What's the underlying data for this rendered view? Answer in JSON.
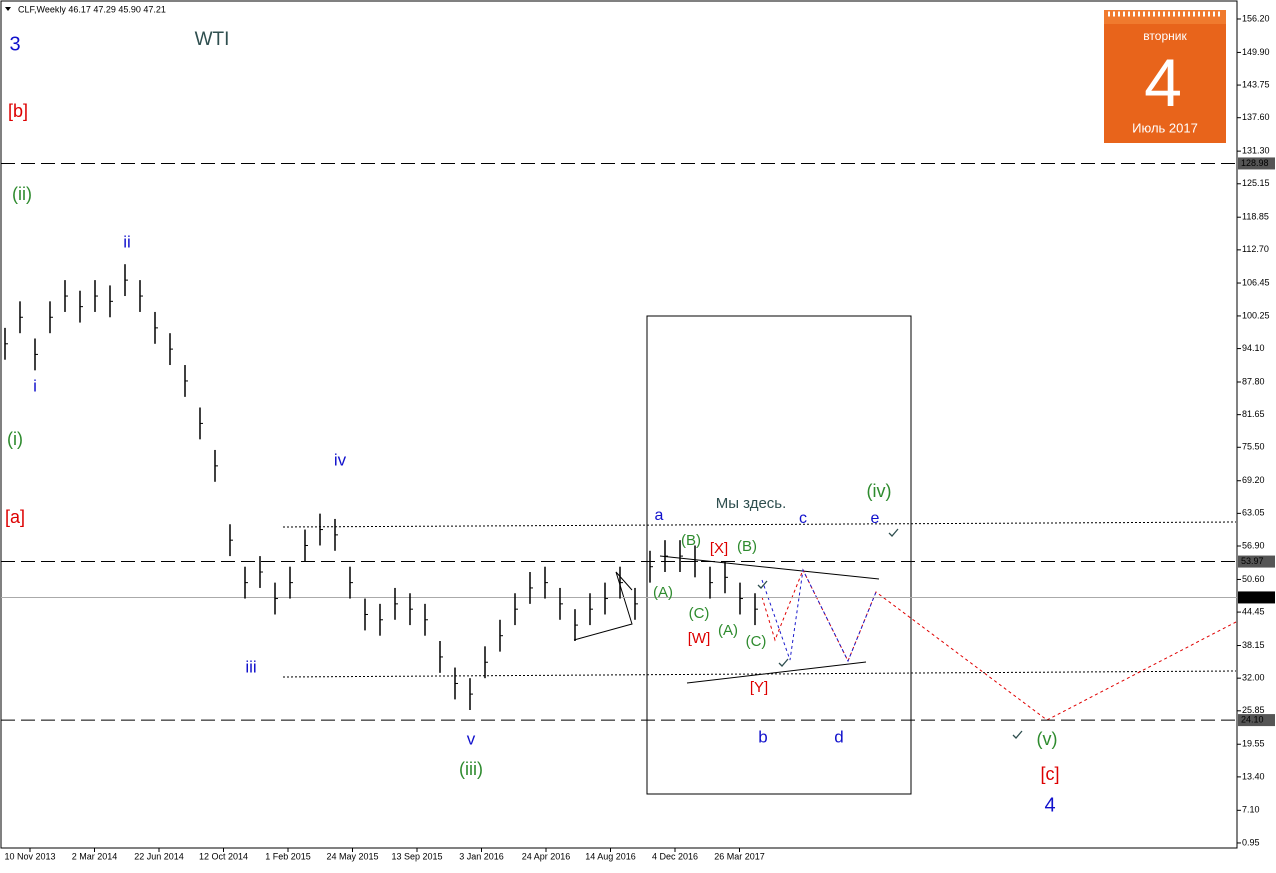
{
  "chart_data": {
    "type": "ohlc",
    "header": "CLF,Weekly  46.17 47.29 45.90 47.21",
    "title": "WTI",
    "ylim": [
      0,
      159.4
    ],
    "yticks": [
      0.95,
      {
        "value": 7.1,
        "label": "7.10"
      },
      {
        "value": 13.4,
        "label": "13.40"
      },
      19.55,
      25.85,
      {
        "value": 32,
        "label": "32.00"
      },
      38.15,
      44.45,
      {
        "value": 50.6,
        "label": "50.60"
      },
      {
        "value": 56.9,
        "label": "56.90"
      },
      63.05,
      {
        "value": 69.2,
        "label": "69.20"
      },
      {
        "value": 75.5,
        "label": "75.50"
      },
      81.65,
      {
        "value": 87.8,
        "label": "87.80"
      },
      {
        "value": 94.1,
        "label": "94.10"
      },
      100.25,
      106.45,
      {
        "value": 112.7,
        "label": "112.70"
      },
      118.85,
      125.15,
      {
        "value": 131.3,
        "label": "131.30"
      },
      {
        "value": 137.6,
        "label": "137.60"
      },
      143.75,
      {
        "value": 149.9,
        "label": "149.90"
      },
      {
        "value": 156.2,
        "label": "156.20"
      }
    ],
    "categories": [
      "10 Nov 2013",
      "2 Mar 2014",
      "22 Jun 2014",
      "12 Oct 2014",
      "1 Feb 2015",
      "24 May 2015",
      "13 Sep 2015",
      "3 Jan 2016",
      "24 Apr 2016",
      "14 Aug 2016",
      "4 Dec 2016",
      "26 Mar 2017"
    ],
    "color": "#000000",
    "high": [
      98,
      103,
      96,
      103,
      107,
      105,
      107,
      106,
      110,
      107,
      101,
      97,
      91,
      83,
      75,
      61,
      53,
      55,
      50,
      53,
      60,
      63,
      62,
      53,
      47,
      46,
      49,
      48,
      46,
      39,
      34,
      32,
      38,
      43,
      48,
      52,
      53,
      49,
      45,
      48,
      50,
      53,
      49,
      56,
      58,
      58,
      57,
      53,
      54,
      50,
      48
    ],
    "low": [
      92,
      97,
      90,
      97,
      101,
      99,
      101,
      100,
      104,
      101,
      95,
      91,
      85,
      77,
      69,
      55,
      47,
      49,
      44,
      47,
      54,
      57,
      56,
      47,
      41,
      40,
      43,
      42,
      40,
      33,
      28,
      26,
      32,
      37,
      42,
      46,
      47,
      43,
      39,
      42,
      44,
      47,
      43,
      50,
      52,
      52,
      51,
      47,
      48,
      44,
      42
    ],
    "levels": [
      128.98,
      53.97,
      47.21,
      {
        "value": 24.1,
        "label": "24.10"
      }
    ],
    "annotations": [
      {
        "text": "3",
        "color": "#1111cc"
      },
      {
        "text": "[b]",
        "color": "#dd0000"
      },
      {
        "text": "(ii)",
        "color": "#2e8b2e"
      },
      {
        "text": "ii",
        "color": "#1111cc"
      },
      {
        "text": "i",
        "color": "#1111cc"
      },
      {
        "text": "(i)",
        "color": "#2e8b2e"
      },
      {
        "text": "iv",
        "color": "#1111cc"
      },
      {
        "text": "[a]",
        "color": "#dd0000"
      },
      {
        "text": "iii",
        "color": "#1111cc"
      },
      {
        "text": "v",
        "color": "#1111cc"
      },
      {
        "text": "(iii)",
        "color": "#2e8b2e"
      },
      {
        "text": "a",
        "color": "#1111cc"
      },
      {
        "text": "Мы здесь.",
        "color": "#2f4f4f"
      },
      {
        "text": "(iv)",
        "color": "#2e8b2e"
      },
      {
        "text": "c",
        "color": "#1111cc"
      },
      {
        "text": "e",
        "color": "#1111cc"
      },
      {
        "text": "(B)",
        "color": "#2e8b2e"
      },
      {
        "text": "[X]",
        "color": "#dd0000"
      },
      {
        "text": "(B)",
        "color": "#2e8b2e"
      },
      {
        "text": "(A)",
        "color": "#2e8b2e"
      },
      {
        "text": "(C)",
        "color": "#2e8b2e"
      },
      {
        "text": "[W]",
        "color": "#dd0000"
      },
      {
        "text": "(A)",
        "color": "#2e8b2e"
      },
      {
        "text": "(C)",
        "color": "#2e8b2e"
      },
      {
        "text": "[Y]",
        "color": "#dd0000"
      },
      {
        "text": "b",
        "color": "#1111cc"
      },
      {
        "text": "d",
        "color": "#1111cc"
      },
      {
        "text": "(v)",
        "color": "#2e8b2e"
      },
      {
        "text": "[c]",
        "color": "#dd0000"
      },
      {
        "text": "4",
        "color": "#1111cc"
      }
    ],
    "calendar": {
      "weekday": "вторник",
      "day": "4",
      "month": "Июль 2017"
    }
  }
}
